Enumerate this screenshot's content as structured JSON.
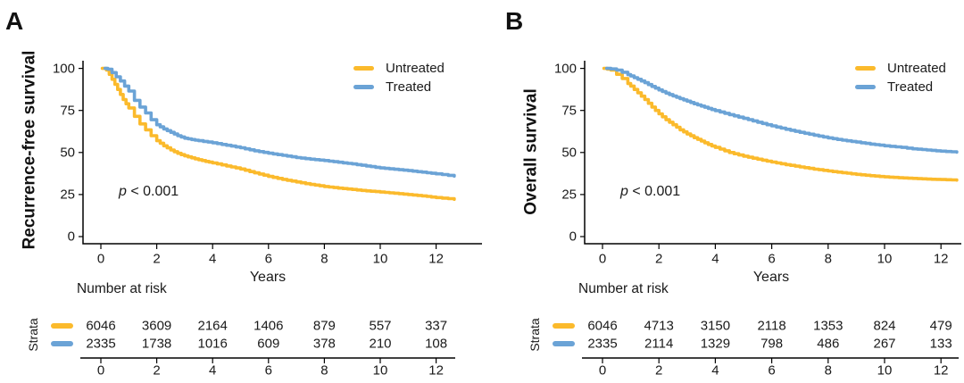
{
  "figure": {
    "background": "#ffffff",
    "axis_color": "#000000",
    "text_color": "#1a1a1a"
  },
  "chart_data": [
    {
      "type": "line",
      "subtype": "kaplan-meier",
      "title": "A",
      "ylabel": "Recurrence-free survival",
      "xlabel": "Years",
      "xlim": [
        0,
        12.7
      ],
      "ylim": [
        0,
        100
      ],
      "yticks": [
        100,
        75,
        50,
        25,
        0
      ],
      "xticks": [
        0,
        2,
        4,
        6,
        8,
        10,
        12
      ],
      "grid": false,
      "legend_position": "top-right",
      "annotation": {
        "symbol": "p",
        "rest": " < 0.001"
      },
      "series": [
        {
          "name": "Untreated",
          "color": "#FBBA2C",
          "points": [
            [
              0.05,
              100
            ],
            [
              0.2,
              99
            ],
            [
              0.3,
              96.5
            ],
            [
              0.4,
              93.5
            ],
            [
              0.5,
              90.5
            ],
            [
              0.6,
              87.5
            ],
            [
              0.7,
              84.5
            ],
            [
              0.8,
              81.5
            ],
            [
              0.9,
              79
            ],
            [
              1,
              76.5
            ],
            [
              1.2,
              71.5
            ],
            [
              1.4,
              67
            ],
            [
              1.6,
              63.5
            ],
            [
              1.8,
              60
            ],
            [
              2,
              57
            ],
            [
              2.25,
              54
            ],
            [
              2.5,
              51.5
            ],
            [
              2.75,
              49.5
            ],
            [
              3,
              48
            ],
            [
              3.25,
              46.8
            ],
            [
              3.5,
              45.7
            ],
            [
              3.75,
              44.7
            ],
            [
              4,
              43.8
            ],
            [
              4.5,
              42
            ],
            [
              5,
              40.2
            ],
            [
              5.5,
              37.9
            ],
            [
              6,
              35.8
            ],
            [
              6.5,
              34
            ],
            [
              7,
              32.5
            ],
            [
              7.5,
              31
            ],
            [
              8,
              29.8
            ],
            [
              8.5,
              28.8
            ],
            [
              9,
              28
            ],
            [
              9.5,
              27.2
            ],
            [
              10,
              26.5
            ],
            [
              10.5,
              25.8
            ],
            [
              11,
              25
            ],
            [
              11.5,
              24.2
            ],
            [
              12,
              23.2
            ],
            [
              12.65,
              22.2
            ]
          ]
        },
        {
          "name": "Treated",
          "color": "#6BA3D6",
          "points": [
            [
              0.15,
              100
            ],
            [
              0.25,
              99.5
            ],
            [
              0.4,
              97.5
            ],
            [
              0.55,
              95
            ],
            [
              0.7,
              92.5
            ],
            [
              0.85,
              89.5
            ],
            [
              1,
              86.5
            ],
            [
              1.2,
              81
            ],
            [
              1.4,
              77
            ],
            [
              1.6,
              73.5
            ],
            [
              1.8,
              69.5
            ],
            [
              2,
              66.5
            ],
            [
              2.25,
              64
            ],
            [
              2.5,
              62
            ],
            [
              2.75,
              60
            ],
            [
              3,
              58.5
            ],
            [
              3.25,
              57.7
            ],
            [
              3.5,
              57
            ],
            [
              4,
              55.8
            ],
            [
              4.5,
              54.3
            ],
            [
              5,
              52.8
            ],
            [
              5.5,
              51
            ],
            [
              6,
              49.6
            ],
            [
              6.5,
              48.3
            ],
            [
              7,
              47
            ],
            [
              7.5,
              46
            ],
            [
              8,
              45.2
            ],
            [
              8.5,
              44.2
            ],
            [
              9,
              43.2
            ],
            [
              9.5,
              42
            ],
            [
              10,
              40.8
            ],
            [
              10.5,
              40
            ],
            [
              11,
              39.2
            ],
            [
              11.5,
              38.3
            ],
            [
              12,
              37.3
            ],
            [
              12.65,
              36
            ]
          ]
        }
      ],
      "risk_table": {
        "header": "Number at risk",
        "axis_label": "Strata",
        "xticks": [
          0,
          2,
          4,
          6,
          8,
          10,
          12
        ],
        "rows": [
          {
            "name": "Untreated",
            "color": "#FBBA2C",
            "counts": [
              6046,
              3609,
              2164,
              1406,
              879,
              557,
              337
            ]
          },
          {
            "name": "Treated",
            "color": "#6BA3D6",
            "counts": [
              2335,
              1738,
              1016,
              609,
              378,
              210,
              108
            ]
          }
        ]
      }
    },
    {
      "type": "line",
      "subtype": "kaplan-meier",
      "title": "B",
      "ylabel": "Overall survival",
      "xlabel": "Years",
      "xlim": [
        0,
        12.6
      ],
      "ylim": [
        0,
        100
      ],
      "yticks": [
        100,
        75,
        50,
        25,
        0
      ],
      "xticks": [
        0,
        2,
        4,
        6,
        8,
        10,
        12
      ],
      "grid": false,
      "legend_position": "top-right",
      "annotation": {
        "symbol": "p",
        "rest": " < 0.001"
      },
      "series": [
        {
          "name": "Untreated",
          "color": "#FBBA2C",
          "points": [
            [
              0.05,
              100
            ],
            [
              0.3,
              99
            ],
            [
              0.5,
              96.5
            ],
            [
              0.7,
              94
            ],
            [
              0.9,
              91
            ],
            [
              1,
              89.5
            ],
            [
              1.25,
              85.5
            ],
            [
              1.5,
              81.5
            ],
            [
              1.75,
              77
            ],
            [
              2,
              73
            ],
            [
              2.25,
              69.5
            ],
            [
              2.5,
              66.5
            ],
            [
              2.75,
              63.5
            ],
            [
              3,
              61
            ],
            [
              3.25,
              58.8
            ],
            [
              3.5,
              56.8
            ],
            [
              3.75,
              54.8
            ],
            [
              4,
              53
            ],
            [
              4.5,
              50
            ],
            [
              5,
              47.8
            ],
            [
              5.5,
              46
            ],
            [
              6,
              44.3
            ],
            [
              6.5,
              42.8
            ],
            [
              7,
              41.4
            ],
            [
              7.5,
              40.1
            ],
            [
              8,
              39
            ],
            [
              8.5,
              38
            ],
            [
              9,
              37
            ],
            [
              9.5,
              36.2
            ],
            [
              10,
              35.5
            ],
            [
              10.5,
              35
            ],
            [
              11,
              34.6
            ],
            [
              11.5,
              34.2
            ],
            [
              12,
              33.9
            ],
            [
              12.56,
              33.6
            ]
          ]
        },
        {
          "name": "Treated",
          "color": "#6BA3D6",
          "points": [
            [
              0.15,
              100
            ],
            [
              0.3,
              99.7
            ],
            [
              0.5,
              99
            ],
            [
              0.7,
              97.7
            ],
            [
              0.9,
              96.3
            ],
            [
              1,
              95.5
            ],
            [
              1.25,
              93.5
            ],
            [
              1.5,
              91.5
            ],
            [
              1.75,
              89.3
            ],
            [
              2,
              87.2
            ],
            [
              2.25,
              85.3
            ],
            [
              2.5,
              83.6
            ],
            [
              2.75,
              82
            ],
            [
              3,
              80.5
            ],
            [
              3.25,
              79
            ],
            [
              3.5,
              77.6
            ],
            [
              3.75,
              76.2
            ],
            [
              4,
              74.9
            ],
            [
              4.5,
              72.5
            ],
            [
              5,
              70.3
            ],
            [
              5.5,
              68
            ],
            [
              6,
              65.8
            ],
            [
              6.5,
              63.8
            ],
            [
              7,
              62
            ],
            [
              7.5,
              60.3
            ],
            [
              8,
              58.7
            ],
            [
              8.5,
              57.3
            ],
            [
              9,
              56.2
            ],
            [
              9.5,
              55
            ],
            [
              10,
              54
            ],
            [
              10.6,
              53
            ],
            [
              11,
              52.2
            ],
            [
              11.5,
              51.5
            ],
            [
              12,
              50.8
            ],
            [
              12.56,
              50.2
            ]
          ]
        }
      ],
      "risk_table": {
        "header": "Number at risk",
        "axis_label": "Strata",
        "xticks": [
          0,
          2,
          4,
          6,
          8,
          10,
          12
        ],
        "rows": [
          {
            "name": "Untreated",
            "color": "#FBBA2C",
            "counts": [
              6046,
              4713,
              3150,
              2118,
              1353,
              824,
              479
            ]
          },
          {
            "name": "Treated",
            "color": "#6BA3D6",
            "counts": [
              2335,
              2114,
              1329,
              798,
              486,
              267,
              133
            ]
          }
        ]
      }
    }
  ]
}
